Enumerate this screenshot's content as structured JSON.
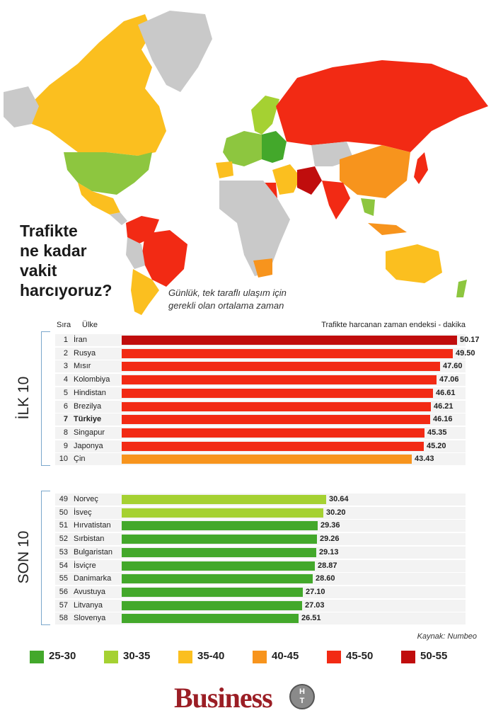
{
  "title_lines": [
    "Trafikte",
    "ne kadar",
    "vakit",
    "harcıyoruz?"
  ],
  "subtitle_lines": [
    "Günlük, tek taraflı ulaşım için",
    "gerekli olan ortalama zaman"
  ],
  "header": {
    "rank": "Sıra",
    "country": "Ülke",
    "index": "Trafikte harcanan zaman endeksi - dakika"
  },
  "groups": {
    "top": "İLK 10",
    "bottom": "SON 10"
  },
  "source": "Kaynak: Numbeo",
  "brand": {
    "name": "Business",
    "badge_top": "H",
    "badge_bottom": "T"
  },
  "chart_data": {
    "type": "bar",
    "orientation": "horizontal",
    "title": "Trafikte ne kadar vakit harcıyoruz?",
    "subtitle": "Günlük, tek taraflı ulaşım için gerekli olan ortalama zaman",
    "xlabel": "Trafikte harcanan zaman endeksi - dakika",
    "xlim": [
      0,
      50.17
    ],
    "highlight": "Türkiye",
    "groups": [
      {
        "name": "İLK 10",
        "rows": [
          {
            "rank": "1",
            "country": "İran",
            "value": 50.17,
            "color": "#c00d0d"
          },
          {
            "rank": "2",
            "country": "Rusya",
            "value": 49.5,
            "color": "#f22a14"
          },
          {
            "rank": "3",
            "country": "Mısır",
            "value": 47.6,
            "color": "#f22a14"
          },
          {
            "rank": "4",
            "country": "Kolombiya",
            "value": 47.06,
            "color": "#f22a14"
          },
          {
            "rank": "5",
            "country": "Hindistan",
            "value": 46.61,
            "color": "#f22a14"
          },
          {
            "rank": "6",
            "country": "Brezilya",
            "value": 46.21,
            "color": "#f22a14"
          },
          {
            "rank": "7",
            "country": "Türkiye",
            "value": 46.16,
            "color": "#f22a14"
          },
          {
            "rank": "8",
            "country": "Singapur",
            "value": 45.35,
            "color": "#f22a14"
          },
          {
            "rank": "9",
            "country": "Japonya",
            "value": 45.2,
            "color": "#f22a14"
          },
          {
            "rank": "10",
            "country": "Çin",
            "value": 43.43,
            "color": "#f7941d"
          }
        ]
      },
      {
        "name": "SON 10",
        "rows": [
          {
            "rank": "49",
            "country": "Norveç",
            "value": 30.64,
            "color": "#a5d132"
          },
          {
            "rank": "50",
            "country": "İsveç",
            "value": 30.2,
            "color": "#a5d132"
          },
          {
            "rank": "51",
            "country": "Hırvatistan",
            "value": 29.36,
            "color": "#43a82b"
          },
          {
            "rank": "52",
            "country": "Sırbistan",
            "value": 29.26,
            "color": "#43a82b"
          },
          {
            "rank": "53",
            "country": "Bulgaristan",
            "value": 29.13,
            "color": "#43a82b"
          },
          {
            "rank": "54",
            "country": "İsviçre",
            "value": 28.87,
            "color": "#43a82b"
          },
          {
            "rank": "55",
            "country": "Danimarka",
            "value": 28.6,
            "color": "#43a82b"
          },
          {
            "rank": "56",
            "country": "Avustuya",
            "value": 27.1,
            "color": "#43a82b"
          },
          {
            "rank": "57",
            "country": "Litvanya",
            "value": 27.03,
            "color": "#43a82b"
          },
          {
            "rank": "58",
            "country": "Slovenya",
            "value": 26.51,
            "color": "#43a82b"
          }
        ]
      }
    ],
    "legend": [
      {
        "label": "25-30",
        "color": "#43a82b"
      },
      {
        "label": "30-35",
        "color": "#a5d132"
      },
      {
        "label": "35-40",
        "color": "#fbbf1f"
      },
      {
        "label": "40-45",
        "color": "#f7941d"
      },
      {
        "label": "45-50",
        "color": "#f22a14"
      },
      {
        "label": "50-55",
        "color": "#c00d0d"
      }
    ],
    "legend_position": "bottom"
  }
}
